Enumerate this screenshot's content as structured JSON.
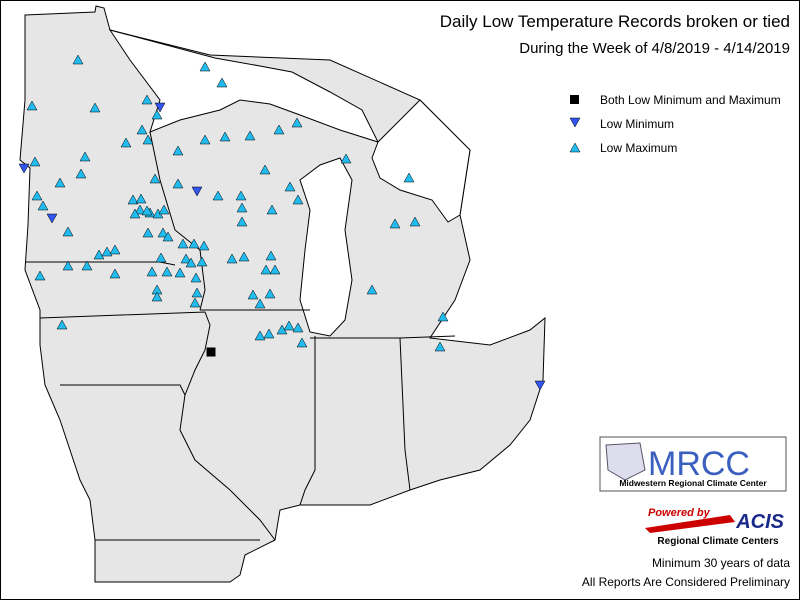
{
  "title": "Daily Low Temperature Records broken or tied",
  "subtitle": "During the Week of 4/8/2019 - 4/14/2019",
  "legend": [
    "Both Low Minimum and Maximum",
    "Low Minimum",
    "Low Maximum"
  ],
  "logo": {
    "name": "MRCC",
    "caption": "Midwestern Regional Climate Center"
  },
  "acis": {
    "powered": "Powered by",
    "name": "ACIS",
    "caption": "Regional Climate Centers"
  },
  "notes": [
    "Minimum 30 years of data",
    "All Reports Are Considered Preliminary"
  ]
}
